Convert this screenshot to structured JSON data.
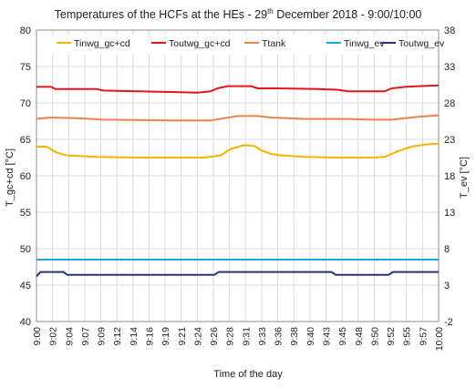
{
  "chart_data": {
    "type": "line",
    "title": "Temperatures of the HCFs at the HEs - 29th December 2018 - 9:00/10:00",
    "title_parts": {
      "pre": "Temperatures of the HCFs at the HEs - 29",
      "sup": "th",
      "post": " December 2018 - 9:00/10:00"
    },
    "xlabel": "Time of the day",
    "ylabel_left": "T_gc+cd [°C]",
    "ylabel_right": "T_ev [°C]",
    "ylim_left": [
      40,
      80
    ],
    "ylim_right": [
      -2,
      38
    ],
    "yticks_left": [
      40,
      45,
      50,
      55,
      60,
      65,
      70,
      75,
      80
    ],
    "yticks_right": [
      -2,
      3,
      8,
      13,
      18,
      23,
      28,
      33,
      38
    ],
    "x_ticks": [
      "9:00",
      "9:02",
      "9:04",
      "9:07",
      "9:09",
      "9:12",
      "9:14",
      "9:16",
      "9:19",
      "9:21",
      "9:24",
      "9:26",
      "9:28",
      "9:31",
      "9:33",
      "9:36",
      "9:38",
      "9:40",
      "9:43",
      "9:45",
      "9:48",
      "9:50",
      "9:52",
      "9:55",
      "9:57",
      "10:00"
    ],
    "x_minutes_range": [
      0,
      60
    ],
    "grid": true,
    "legend_position": "top",
    "series": [
      {
        "name": "Tinwg_gc+cd",
        "axis": "left",
        "color": "#f5b301",
        "x": [
          0,
          1.5,
          3,
          4.5,
          9,
          15,
          20,
          25,
          27.5,
          29,
          31,
          32.5,
          33.5,
          35,
          36.5,
          40,
          45,
          50,
          52,
          54,
          56,
          58,
          60
        ],
        "y": [
          64.0,
          64.0,
          63.2,
          62.8,
          62.6,
          62.5,
          62.5,
          62.5,
          62.8,
          63.7,
          64.2,
          64.1,
          63.5,
          63.0,
          62.8,
          62.6,
          62.5,
          62.5,
          62.6,
          63.4,
          64.0,
          64.3,
          64.4
        ]
      },
      {
        "name": "Toutwg_gc+cd",
        "axis": "left",
        "color": "#e8141b",
        "x": [
          0,
          2.2,
          2.8,
          9,
          10,
          20,
          24,
          26,
          27,
          28.5,
          32,
          33,
          36,
          42,
          45,
          46.5,
          52,
          53,
          55,
          57,
          60
        ],
        "y": [
          72.2,
          72.2,
          71.9,
          71.9,
          71.7,
          71.5,
          71.4,
          71.6,
          72.0,
          72.3,
          72.3,
          72.0,
          72.0,
          71.9,
          71.8,
          71.6,
          71.6,
          72.0,
          72.2,
          72.3,
          72.4
        ]
      },
      {
        "name": "Ttank",
        "axis": "left",
        "color": "#ee8150",
        "x": [
          0,
          2,
          6,
          10,
          20,
          26,
          28,
          30,
          33,
          35,
          40,
          46,
          50,
          53,
          55,
          57,
          60
        ],
        "y": [
          67.8,
          68.0,
          67.9,
          67.7,
          67.6,
          67.6,
          67.9,
          68.2,
          68.2,
          68.0,
          67.8,
          67.8,
          67.7,
          67.7,
          67.9,
          68.1,
          68.3
        ]
      },
      {
        "name": "Tinwg_ev",
        "axis": "right",
        "color": "#18a9dc",
        "x": [
          0,
          60
        ],
        "y": [
          6.5,
          6.5
        ]
      },
      {
        "name": "Toutwg_ev",
        "axis": "right",
        "color": "#2a3576",
        "x": [
          0,
          0.6,
          4,
          4.6,
          26.5,
          27.2,
          44,
          44.7,
          52.5,
          53.2,
          60
        ],
        "y": [
          4.2,
          4.8,
          4.8,
          4.4,
          4.4,
          4.8,
          4.8,
          4.4,
          4.4,
          4.8,
          4.8
        ]
      }
    ]
  }
}
